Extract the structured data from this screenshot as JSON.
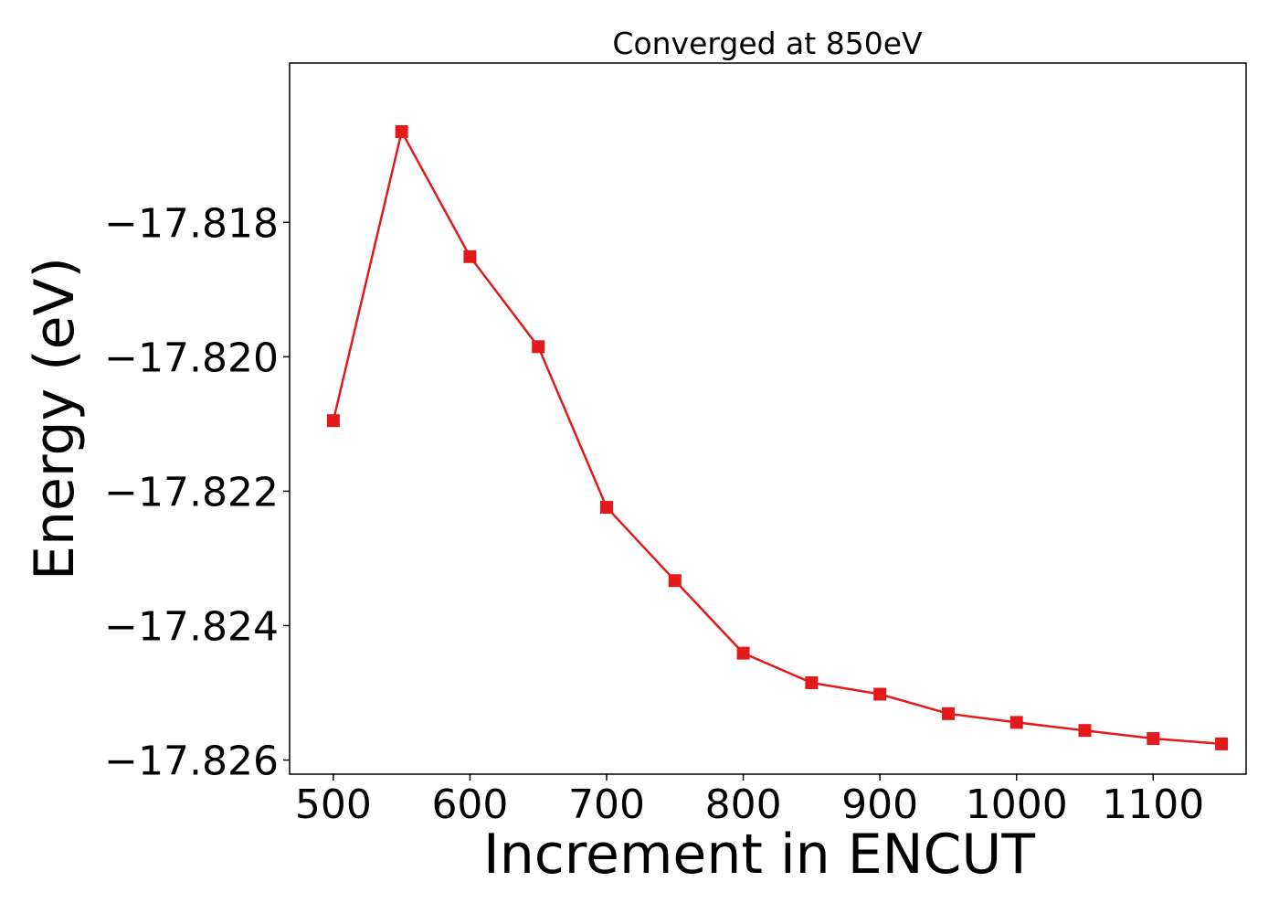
{
  "chart_data": {
    "type": "line",
    "title": "Converged at 850eV",
    "xlabel": "Increment in ENCUT",
    "ylabel": "Energy (eV)",
    "xlim": [
      468,
      1168
    ],
    "ylim": [
      -17.82621,
      -17.81563
    ],
    "xticks": [
      500,
      600,
      700,
      800,
      900,
      1000,
      1100
    ],
    "xtick_labels": [
      "500",
      "600",
      "700",
      "800",
      "900",
      "1000",
      "1100"
    ],
    "yticks": [
      -17.818,
      -17.82,
      -17.822,
      -17.824,
      -17.826
    ],
    "ytick_labels": [
      "−17.818",
      "−17.820",
      "−17.822",
      "−17.824",
      "−17.826"
    ],
    "grid": false,
    "series": [
      {
        "color": "#e31a1c",
        "marker": "square",
        "x": [
          500,
          550,
          600,
          650,
          700,
          750,
          800,
          850,
          900,
          950,
          1000,
          1050,
          1100,
          1150
        ],
        "y": [
          -17.82095,
          -17.81665,
          -17.81851,
          -17.81985,
          -17.82224,
          -17.82333,
          -17.82441,
          -17.82485,
          -17.82502,
          -17.82531,
          -17.82544,
          -17.82556,
          -17.82568,
          -17.82576
        ]
      }
    ]
  }
}
